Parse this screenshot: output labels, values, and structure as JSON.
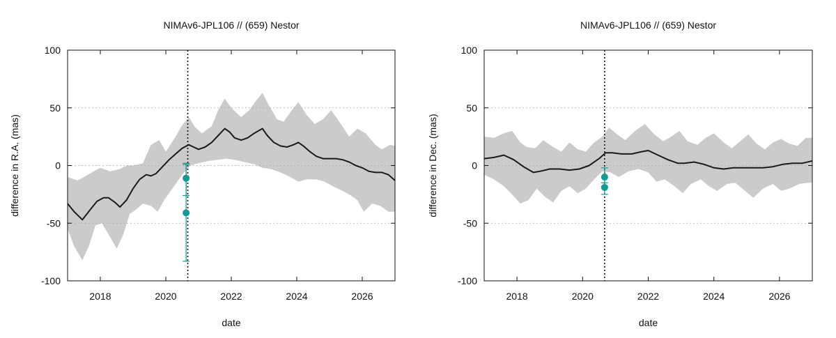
{
  "chart_data": [
    {
      "type": "line",
      "title": "NIMAv6-JPL106 // (659) Nestor",
      "xlabel": "date",
      "ylabel": "difference in R.A. (mas)",
      "xlim": [
        2017.0,
        2027.0
      ],
      "ylim": [
        -100,
        100
      ],
      "xticks": [
        2018,
        2020,
        2022,
        2024,
        2026
      ],
      "yticks": [
        100,
        50,
        0,
        -50,
        -100
      ],
      "grid": "horizontal dotted",
      "vline_x": 2020.67,
      "colors": {
        "line": "#1a1a1a",
        "band": "#cbcbcb",
        "observations": "#129a94"
      },
      "series": [
        {
          "kind": "line",
          "x": [
            2017.0,
            2017.2,
            2017.45,
            2017.7,
            2017.9,
            2018.1,
            2018.25,
            2018.35,
            2018.45,
            2018.6,
            2018.8,
            2019.0,
            2019.2,
            2019.4,
            2019.55,
            2019.7,
            2019.9,
            2020.1,
            2020.3,
            2020.5,
            2020.7,
            2020.85,
            2021.0,
            2021.2,
            2021.4,
            2021.6,
            2021.8,
            2021.95,
            2022.1,
            2022.3,
            2022.5,
            2022.7,
            2022.95,
            2023.1,
            2023.3,
            2023.5,
            2023.7,
            2023.9,
            2024.05,
            2024.2,
            2024.4,
            2024.6,
            2024.8,
            2025.0,
            2025.2,
            2025.4,
            2025.6,
            2025.8,
            2026.0,
            2026.2,
            2026.4,
            2026.6,
            2026.8,
            2027.0
          ],
          "y": [
            -33,
            -40,
            -47,
            -38,
            -31,
            -28,
            -28,
            -30,
            -32,
            -36,
            -30,
            -20,
            -12,
            -8,
            -9,
            -7,
            -1,
            5,
            10,
            15,
            18,
            16,
            14,
            16,
            20,
            26,
            32,
            29,
            24,
            22,
            24,
            28,
            32,
            26,
            20,
            17,
            16,
            18,
            20,
            17,
            12,
            8,
            6,
            6,
            6,
            5,
            3,
            0,
            -2,
            -5,
            -6,
            -6,
            -8,
            -13
          ]
        },
        {
          "kind": "band_upper",
          "x": [
            2017.0,
            2017.3,
            2017.5,
            2017.8,
            2018.0,
            2018.3,
            2018.6,
            2018.8,
            2019.0,
            2019.3,
            2019.55,
            2019.8,
            2020.0,
            2020.3,
            2020.5,
            2020.7,
            2020.9,
            2021.1,
            2021.4,
            2021.6,
            2021.8,
            2022.0,
            2022.3,
            2022.55,
            2022.75,
            2022.95,
            2023.15,
            2023.4,
            2023.6,
            2023.85,
            2024.05,
            2024.3,
            2024.55,
            2024.8,
            2025.05,
            2025.3,
            2025.6,
            2025.85,
            2026.1,
            2026.4,
            2026.6,
            2026.85,
            2027.0
          ],
          "y": [
            -10,
            -13,
            -10,
            -5,
            -2,
            -5,
            -3,
            0,
            0,
            2,
            18,
            22,
            12,
            25,
            35,
            42,
            33,
            28,
            34,
            48,
            58,
            50,
            42,
            48,
            56,
            63,
            52,
            40,
            38,
            48,
            55,
            44,
            36,
            40,
            48,
            38,
            25,
            32,
            28,
            18,
            14,
            18,
            17
          ]
        },
        {
          "kind": "band_lower",
          "x": [
            2017.0,
            2017.2,
            2017.45,
            2017.65,
            2017.85,
            2018.05,
            2018.3,
            2018.5,
            2018.7,
            2018.9,
            2019.1,
            2019.3,
            2019.55,
            2019.75,
            2019.95,
            2020.2,
            2020.5,
            2020.75,
            2021.0,
            2021.3,
            2021.6,
            2021.85,
            2022.1,
            2022.4,
            2022.7,
            2022.95,
            2023.2,
            2023.5,
            2023.8,
            2024.05,
            2024.3,
            2024.6,
            2024.85,
            2025.1,
            2025.4,
            2025.65,
            2025.85,
            2026.05,
            2026.3,
            2026.55,
            2026.8,
            2027.0
          ],
          "y": [
            -55,
            -70,
            -82,
            -70,
            -52,
            -50,
            -62,
            -72,
            -60,
            -42,
            -38,
            -33,
            -35,
            -40,
            -30,
            -20,
            -8,
            0,
            2,
            4,
            5,
            6,
            5,
            3,
            1,
            -2,
            -3,
            -6,
            -10,
            -14,
            -12,
            -12,
            -14,
            -18,
            -22,
            -26,
            -30,
            -40,
            -33,
            -35,
            -40,
            -40
          ]
        },
        {
          "kind": "observations",
          "x": [
            2020.62,
            2020.62
          ],
          "y": [
            -11,
            -41
          ],
          "err_low": [
            -26,
            -83
          ],
          "err_high": [
            2,
            1
          ]
        }
      ]
    },
    {
      "type": "line",
      "title": "NIMAv6-JPL106 // (659) Nestor",
      "xlabel": "date",
      "ylabel": "difference in Dec. (mas)",
      "xlim": [
        2017.0,
        2027.0
      ],
      "ylim": [
        -100,
        100
      ],
      "xticks": [
        2018,
        2020,
        2022,
        2024,
        2026
      ],
      "yticks": [
        100,
        50,
        0,
        -50,
        -100
      ],
      "grid": "horizontal dotted",
      "vline_x": 2020.67,
      "colors": {
        "line": "#1a1a1a",
        "band": "#cbcbcb",
        "observations": "#129a94"
      },
      "series": [
        {
          "kind": "line",
          "x": [
            2017.0,
            2017.3,
            2017.6,
            2017.9,
            2018.2,
            2018.5,
            2018.7,
            2019.0,
            2019.3,
            2019.6,
            2019.9,
            2020.2,
            2020.5,
            2020.7,
            2020.9,
            2021.2,
            2021.5,
            2021.8,
            2022.0,
            2022.3,
            2022.6,
            2022.9,
            2023.1,
            2023.4,
            2023.7,
            2024.0,
            2024.3,
            2024.6,
            2024.9,
            2025.2,
            2025.5,
            2025.8,
            2026.1,
            2026.4,
            2026.7,
            2027.0
          ],
          "y": [
            6,
            7,
            9,
            5,
            -1,
            -6,
            -5,
            -3,
            -3,
            -4,
            -3,
            0,
            6,
            11,
            11,
            10,
            10,
            12,
            13,
            9,
            5,
            2,
            2,
            3,
            1,
            -2,
            -3,
            -2,
            -2,
            -2,
            -2,
            -1,
            1,
            2,
            2,
            4
          ]
        },
        {
          "kind": "band_upper",
          "x": [
            2017.0,
            2017.3,
            2017.6,
            2017.85,
            2018.1,
            2018.3,
            2018.55,
            2018.8,
            2019.1,
            2019.35,
            2019.6,
            2019.85,
            2020.1,
            2020.35,
            2020.6,
            2020.8,
            2021.05,
            2021.3,
            2021.6,
            2021.9,
            2022.15,
            2022.45,
            2022.7,
            2022.95,
            2023.2,
            2023.5,
            2023.75,
            2024.0,
            2024.3,
            2024.55,
            2024.8,
            2025.05,
            2025.3,
            2025.55,
            2025.8,
            2026.05,
            2026.3,
            2026.55,
            2026.8,
            2027.0
          ],
          "y": [
            25,
            24,
            28,
            30,
            20,
            16,
            15,
            22,
            16,
            12,
            20,
            14,
            12,
            20,
            25,
            33,
            27,
            22,
            30,
            36,
            28,
            21,
            25,
            30,
            21,
            18,
            24,
            28,
            20,
            15,
            21,
            27,
            19,
            14,
            20,
            23,
            19,
            17,
            24,
            24
          ]
        },
        {
          "kind": "band_lower",
          "x": [
            2017.0,
            2017.3,
            2017.6,
            2017.85,
            2018.1,
            2018.35,
            2018.6,
            2018.85,
            2019.1,
            2019.35,
            2019.6,
            2019.85,
            2020.1,
            2020.35,
            2020.6,
            2020.85,
            2021.1,
            2021.4,
            2021.7,
            2022.0,
            2022.25,
            2022.5,
            2022.8,
            2023.05,
            2023.3,
            2023.6,
            2023.85,
            2024.1,
            2024.4,
            2024.65,
            2024.95,
            2025.2,
            2025.5,
            2025.8,
            2026.05,
            2026.3,
            2026.6,
            2026.85,
            2027.0
          ],
          "y": [
            -8,
            -12,
            -18,
            -25,
            -33,
            -30,
            -20,
            -27,
            -32,
            -22,
            -18,
            -24,
            -20,
            -12,
            -5,
            -6,
            -10,
            -5,
            -3,
            -6,
            -14,
            -12,
            -18,
            -24,
            -16,
            -12,
            -18,
            -22,
            -16,
            -15,
            -22,
            -28,
            -20,
            -16,
            -22,
            -20,
            -16,
            -15,
            -15
          ]
        },
        {
          "kind": "observations",
          "x": [
            2020.67,
            2020.67
          ],
          "y": [
            -10,
            -19
          ],
          "err_low": [
            -18,
            -25
          ],
          "err_high": [
            -2,
            -15
          ]
        }
      ]
    }
  ]
}
